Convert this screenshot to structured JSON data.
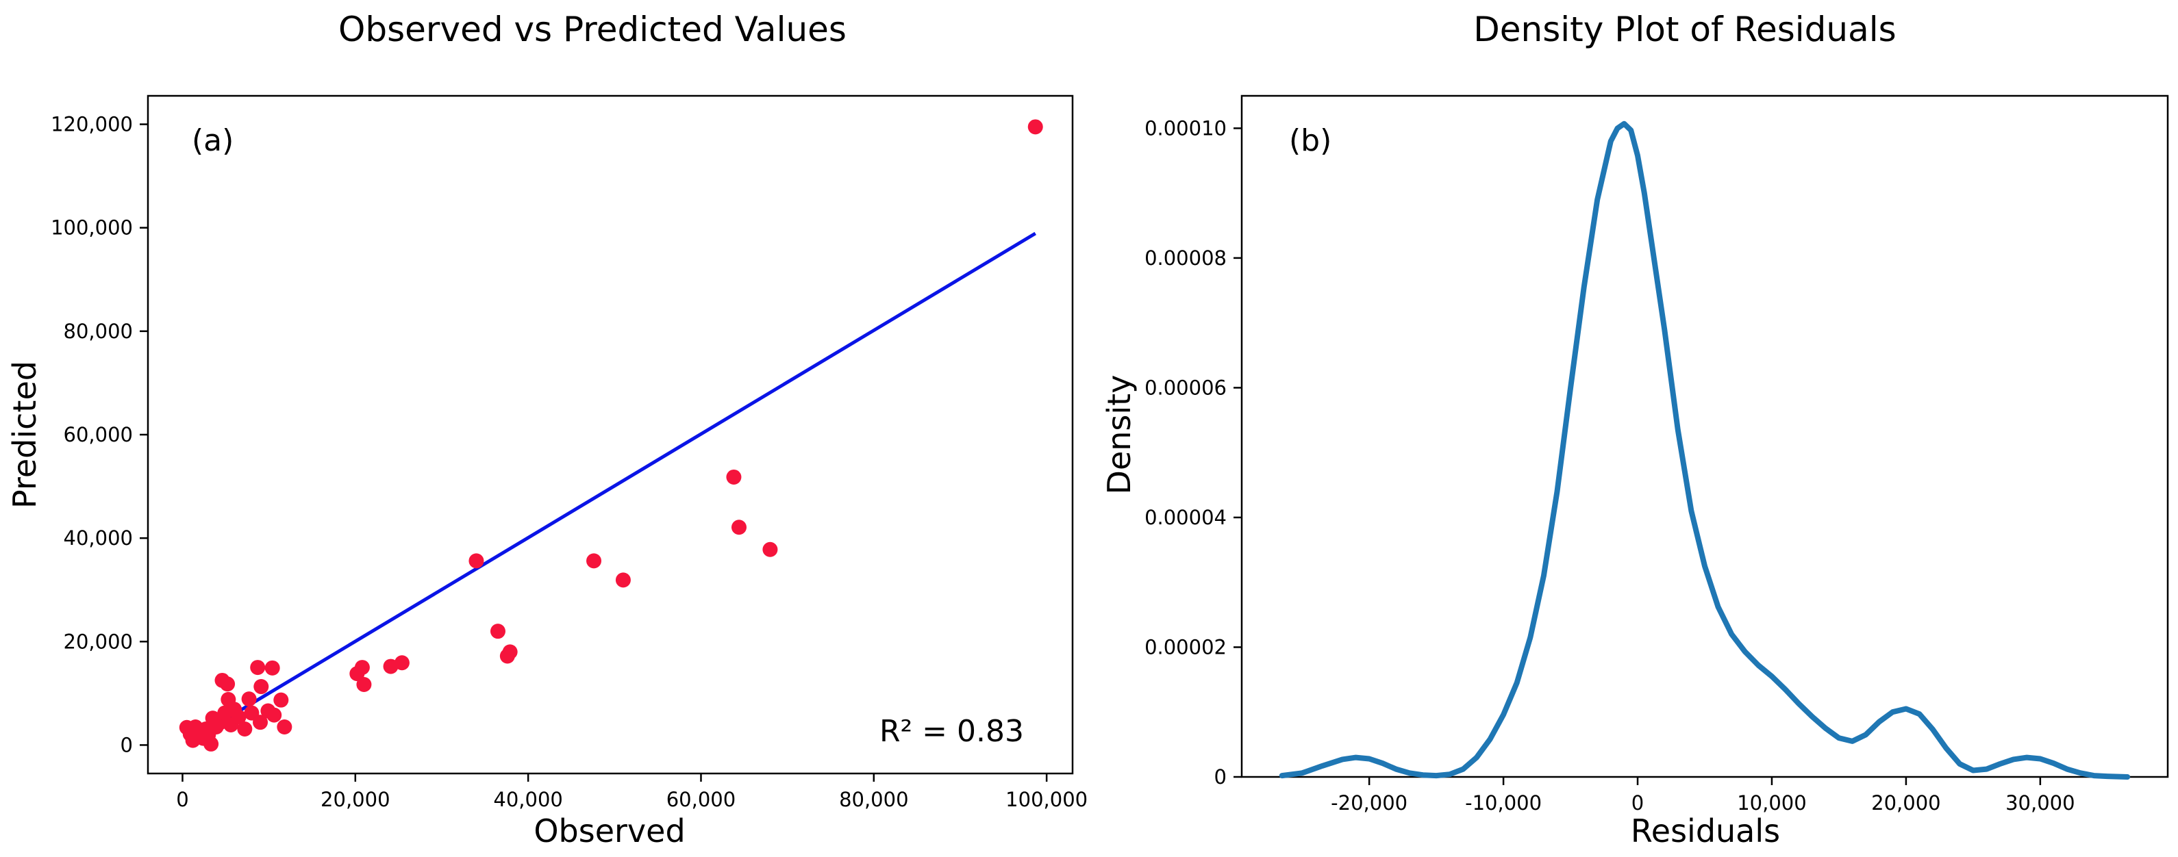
{
  "chart_data": [
    {
      "type": "scatter",
      "panel_label": "(a)",
      "title": "Observed vs Predicted Values",
      "xlabel": "Observed",
      "ylabel": "Predicted",
      "xlim": [
        -4000,
        103000
      ],
      "ylim": [
        -5500,
        125500
      ],
      "xticks": [
        0,
        20000,
        40000,
        60000,
        80000,
        100000
      ],
      "xtick_labels": [
        "0",
        "20,000",
        "40,000",
        "60,000",
        "80,000",
        "100,000"
      ],
      "yticks": [
        0,
        20000,
        40000,
        60000,
        80000,
        100000,
        120000
      ],
      "ytick_labels": [
        "0",
        "20,000",
        "40,000",
        "60,000",
        "80,000",
        "100,000",
        "120,000"
      ],
      "annotation": "R² = 0.83",
      "point_color": "#f5143c",
      "line_color": "#0a14e6",
      "series": [
        {
          "name": "observations",
          "points": [
            [
              500,
              3400
            ],
            [
              900,
              2100
            ],
            [
              1200,
              900
            ],
            [
              1500,
              3500
            ],
            [
              1800,
              1600
            ],
            [
              2100,
              2800
            ],
            [
              2400,
              1300
            ],
            [
              2700,
              3100
            ],
            [
              3000,
              2000
            ],
            [
              3300,
              200
            ],
            [
              3500,
              5200
            ],
            [
              3900,
              3500
            ],
            [
              4300,
              4300
            ],
            [
              4600,
              12500
            ],
            [
              4900,
              6200
            ],
            [
              5200,
              11800
            ],
            [
              5300,
              8800
            ],
            [
              5600,
              3900
            ],
            [
              6000,
              6900
            ],
            [
              6500,
              5400
            ],
            [
              7200,
              3100
            ],
            [
              7700,
              8900
            ],
            [
              8000,
              6200
            ],
            [
              8700,
              15000
            ],
            [
              9000,
              4400
            ],
            [
              9100,
              11300
            ],
            [
              9900,
              6600
            ],
            [
              10400,
              14900
            ],
            [
              10600,
              5800
            ],
            [
              11400,
              8700
            ],
            [
              11800,
              3500
            ],
            [
              20200,
              13800
            ],
            [
              20800,
              15000
            ],
            [
              21000,
              11700
            ],
            [
              24100,
              15200
            ],
            [
              25400,
              15900
            ],
            [
              34000,
              35600
            ],
            [
              36500,
              22000
            ],
            [
              37600,
              17200
            ],
            [
              37900,
              18000
            ],
            [
              47600,
              35600
            ],
            [
              51000,
              31900
            ],
            [
              63800,
              51800
            ],
            [
              64400,
              42100
            ],
            [
              68000,
              37800
            ],
            [
              98700,
              119500
            ]
          ]
        },
        {
          "name": "fit line",
          "points": [
            [
              500,
              500
            ],
            [
              98700,
              98900
            ]
          ]
        }
      ]
    },
    {
      "type": "line",
      "panel_label": "(b)",
      "title": "Density Plot of Residuals",
      "xlabel": "Residuals",
      "ylabel": "Density",
      "xlim": [
        -29500,
        39500
      ],
      "ylim": [
        0,
        0.000105
      ],
      "xticks": [
        -20000,
        -10000,
        0,
        10000,
        20000,
        30000
      ],
      "xtick_labels": [
        "-20,000",
        "-10,000",
        "0",
        "10,000",
        "20,000",
        "30,000"
      ],
      "yticks": [
        0,
        2e-05,
        4e-05,
        6e-05,
        8e-05,
        0.0001
      ],
      "ytick_labels": [
        "0",
        "0.00002",
        "0.00004",
        "0.00006",
        "0.00008",
        "0.00010"
      ],
      "line_color": "#1f77b4",
      "series": [
        {
          "name": "residual density",
          "x": [
            -26500,
            -25000,
            -23500,
            -22000,
            -21000,
            -20000,
            -19000,
            -18000,
            -17000,
            -16000,
            -15000,
            -14000,
            -13000,
            -12000,
            -11000,
            -10000,
            -9000,
            -8000,
            -7000,
            -6000,
            -5000,
            -4000,
            -3000,
            -2000,
            -1500,
            -1000,
            -500,
            0,
            500,
            1000,
            2000,
            3000,
            4000,
            5000,
            6000,
            7000,
            8000,
            9000,
            10000,
            11000,
            12000,
            13000,
            14000,
            15000,
            16000,
            17000,
            18000,
            19000,
            20000,
            21000,
            22000,
            23000,
            24000,
            25000,
            26000,
            27000,
            28000,
            29000,
            30000,
            31000,
            32000,
            33000,
            34000,
            35000,
            36500
          ],
          "y": [
            2e-07,
            6e-07,
            1.7e-06,
            2.7e-06,
            3e-06,
            2.8e-06,
            2.1e-06,
            1.2e-06,
            6e-07,
            3e-07,
            2e-07,
            4e-07,
            1.2e-06,
            3e-06,
            5.8e-06,
            9.6e-06,
            1.45e-05,
            2.15e-05,
            3.1e-05,
            4.4e-05,
            6e-05,
            7.55e-05,
            8.9e-05,
            9.8e-05,
            0.0001,
            0.0001007,
            9.97e-05,
            9.58e-05,
            9e-05,
            8.3e-05,
            6.9e-05,
            5.35e-05,
            4.1e-05,
            3.25e-05,
            2.62e-05,
            2.2e-05,
            1.93e-05,
            1.72e-05,
            1.55e-05,
            1.35e-05,
            1.13e-05,
            9.3e-06,
            7.5e-06,
            6e-06,
            5.5e-06,
            6.5e-06,
            8.5e-06,
            1e-05,
            1.05e-05,
            9.7e-06,
            7.3e-06,
            4.4e-06,
            2e-06,
            1e-06,
            1.2e-06,
            2e-06,
            2.7e-06,
            3e-06,
            2.8e-06,
            2.1e-06,
            1.2e-06,
            6e-07,
            2e-07,
            1e-07,
            0.0
          ]
        }
      ]
    }
  ]
}
